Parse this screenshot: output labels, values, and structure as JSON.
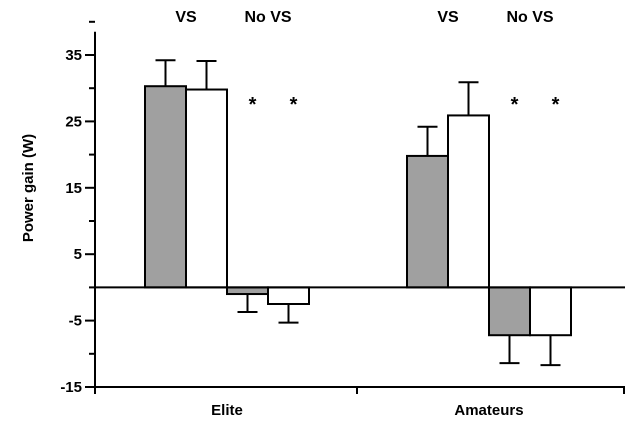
{
  "chart_data": {
    "type": "bar",
    "title": "",
    "xlabel": "",
    "ylabel": "Power gain (W)",
    "ylim": [
      -15,
      40
    ],
    "yticks": [
      -15,
      -5,
      5,
      15,
      25,
      35
    ],
    "grid": false,
    "legend": "none",
    "categories": [
      "Elite",
      "Amateurs"
    ],
    "condition_labels": [
      "VS",
      "No VS"
    ],
    "significance_marker": "*",
    "colors": {
      "gray": "#a0a0a0",
      "white": "#ffffff",
      "outline": "#000000"
    },
    "groups": [
      {
        "category": "Elite",
        "bars": [
          {
            "condition": "VS",
            "fill": "gray",
            "value": 30.3,
            "error": 3.9,
            "significant": false
          },
          {
            "condition": "VS",
            "fill": "white",
            "value": 29.8,
            "error": 4.3,
            "significant": false
          },
          {
            "condition": "No VS",
            "fill": "gray",
            "value": -1.0,
            "error": 2.7,
            "significant": true
          },
          {
            "condition": "No VS",
            "fill": "white",
            "value": -2.5,
            "error": 2.8,
            "significant": true
          }
        ]
      },
      {
        "category": "Amateurs",
        "bars": [
          {
            "condition": "VS",
            "fill": "gray",
            "value": 19.8,
            "error": 4.4,
            "significant": false
          },
          {
            "condition": "VS",
            "fill": "white",
            "value": 25.9,
            "error": 5.0,
            "significant": false
          },
          {
            "condition": "No VS",
            "fill": "gray",
            "value": -7.2,
            "error": 4.2,
            "significant": true
          },
          {
            "condition": "No VS",
            "fill": "white",
            "value": -7.2,
            "error": 4.5,
            "significant": true
          }
        ]
      }
    ]
  }
}
